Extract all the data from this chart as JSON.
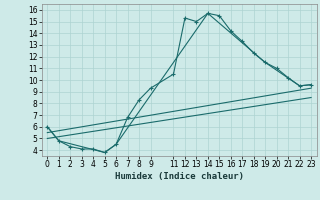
{
  "xlabel": "Humidex (Indice chaleur)",
  "xlim": [
    -0.5,
    23.5
  ],
  "ylim": [
    3.5,
    16.5
  ],
  "xticks": [
    0,
    1,
    2,
    3,
    4,
    5,
    6,
    7,
    8,
    9,
    11,
    12,
    13,
    14,
    15,
    16,
    17,
    18,
    19,
    20,
    21,
    22,
    23
  ],
  "yticks": [
    4,
    5,
    6,
    7,
    8,
    9,
    10,
    11,
    12,
    13,
    14,
    15,
    16
  ],
  "bg_color": "#ceeae8",
  "grid_color": "#aed4d2",
  "line_color": "#1a6b6b",
  "line1_x": [
    0,
    1,
    2,
    3,
    4,
    5,
    6,
    7,
    8,
    9,
    11,
    12,
    13,
    14,
    15,
    16,
    17,
    18,
    19,
    20,
    21,
    22,
    23
  ],
  "line1_y": [
    6.0,
    4.8,
    4.3,
    4.1,
    4.1,
    3.8,
    4.5,
    6.8,
    8.3,
    9.3,
    10.5,
    15.3,
    15.0,
    15.7,
    15.5,
    14.2,
    13.3,
    12.3,
    11.5,
    11.0,
    10.2,
    9.5,
    9.6
  ],
  "line2_x": [
    0,
    1,
    5,
    6,
    14,
    19,
    22,
    23
  ],
  "line2_y": [
    6.0,
    4.8,
    3.8,
    4.5,
    15.7,
    11.5,
    9.5,
    9.6
  ],
  "line3_x": [
    0,
    23
  ],
  "line3_y": [
    5.5,
    9.3
  ],
  "line4_x": [
    0,
    23
  ],
  "line4_y": [
    5.0,
    8.5
  ]
}
